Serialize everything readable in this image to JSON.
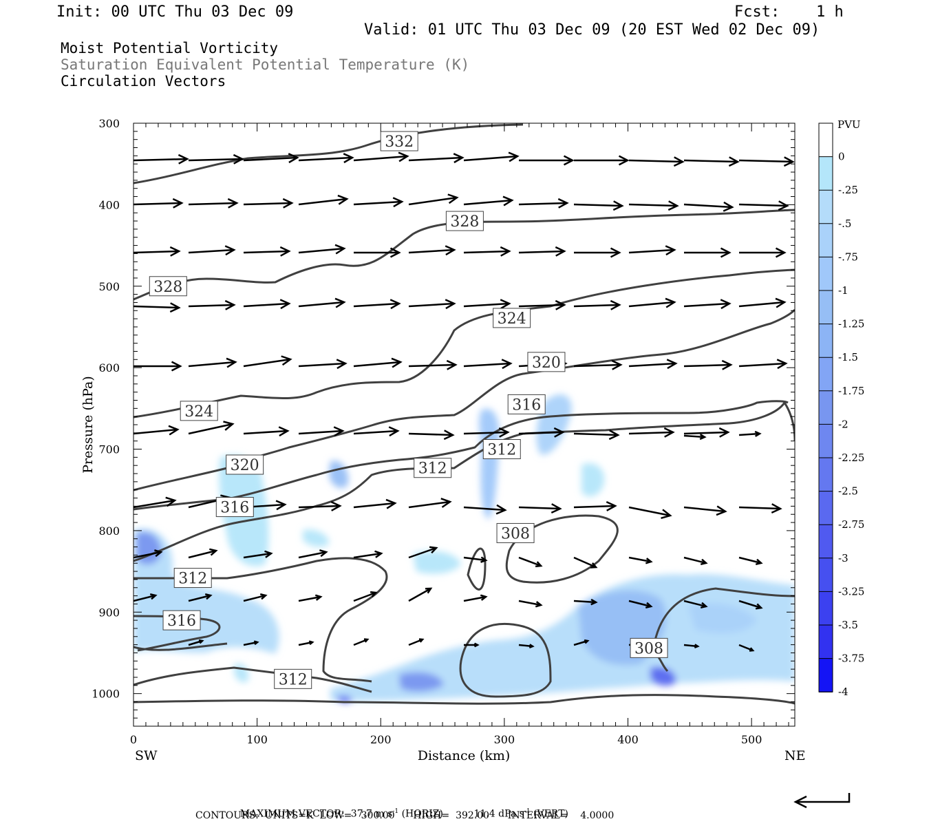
{
  "header": {
    "init": "Init: 00 UTC Thu 03 Dec 09",
    "fcst_label": "Fcst:",
    "fcst_value": "1 h",
    "valid": "Valid: 01 UTC Thu 03 Dec 09 (20 EST Wed 02 Dec 09)"
  },
  "titles": {
    "line1": "Moist Potential Vorticity",
    "line2": "Saturation Equivalent Potential Temperature (K)",
    "line3": "Circulation Vectors"
  },
  "footer": {
    "max_vector_label": "MAXIMUM VECTOR:",
    "horiz_value": "37.7",
    "horiz_units_pre": "m s",
    "horiz_exp": "-1",
    "horiz_tag": "(HORIZ)",
    "vert_value": "11.4",
    "vert_units_pre": "dPa s",
    "vert_exp": "-1",
    "vert_tag": "(VERT)",
    "contours_line": "CONTOURS:  UNITS=K  LOW=   300.00      HIGH=  392.00      INTERVAL=    4.0000"
  },
  "chart_data": {
    "type": "heatmap",
    "title": "Moist Potential Vorticity",
    "xlabel": "Distance (km)",
    "ylabel": "Pressure (hPa)",
    "xlim": [
      0,
      535
    ],
    "ylim": [
      1040,
      300
    ],
    "y_scale": "linear (inverted)",
    "x_ticks": [
      0,
      100,
      200,
      300,
      400,
      500
    ],
    "y_ticks": [
      300,
      400,
      500,
      600,
      700,
      800,
      900,
      1000
    ],
    "x_end_labels": {
      "left": "SW",
      "right": "NE"
    },
    "colorbar": {
      "units": "PVU",
      "ticks": [
        "0",
        "-.25",
        "-.5",
        "-.75",
        "-1",
        "-1.25",
        "-1.5",
        "-1.75",
        "-2",
        "-2.25",
        "-2.5",
        "-2.75",
        "-3",
        "-3.25",
        "-3.5",
        "-3.75",
        "-4"
      ],
      "colors": [
        "#ffffff",
        "#b4e6fa",
        "#b4dcfa",
        "#aad2fa",
        "#a0c8fa",
        "#96bef5",
        "#8cb4f5",
        "#82a5f5",
        "#7896f0",
        "#6e87f0",
        "#6478f0",
        "#5a69f0",
        "#505af0",
        "#4650f0",
        "#3c41f0",
        "#3232f0",
        "#1414f5"
      ]
    },
    "theta_es_contour_labels": [
      {
        "label": "332",
        "x": 215,
        "p": 322
      },
      {
        "label": "328",
        "x": 268,
        "p": 420
      },
      {
        "label": "328",
        "x": 28,
        "p": 500
      },
      {
        "label": "324",
        "x": 306,
        "p": 539
      },
      {
        "label": "320",
        "x": 334,
        "p": 593
      },
      {
        "label": "316",
        "x": 318,
        "p": 645
      },
      {
        "label": "324",
        "x": 53,
        "p": 653
      },
      {
        "label": "312",
        "x": 298,
        "p": 700
      },
      {
        "label": "320",
        "x": 90,
        "p": 719
      },
      {
        "label": "312",
        "x": 242,
        "p": 723
      },
      {
        "label": "316",
        "x": 82,
        "p": 771
      },
      {
        "label": "308",
        "x": 309,
        "p": 803
      },
      {
        "label": "312",
        "x": 48,
        "p": 858
      },
      {
        "label": "316",
        "x": 39,
        "p": 910
      },
      {
        "label": "308",
        "x": 417,
        "p": 944
      },
      {
        "label": "312",
        "x": 129,
        "p": 982
      }
    ],
    "contour_interval_K": 4.0,
    "max_vector": {
      "horiz_m_s": 37.7,
      "vert_dPa_s": 11.4
    }
  }
}
